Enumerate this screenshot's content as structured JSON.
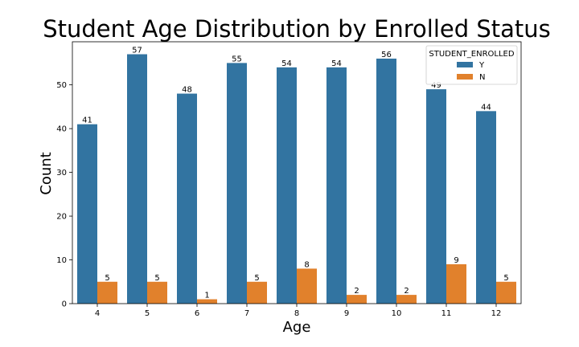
{
  "chart_data": {
    "type": "bar",
    "title": "Student Age Distribution by Enrolled Status",
    "xlabel": "Age",
    "ylabel": "Count",
    "categories": [
      "4",
      "5",
      "6",
      "7",
      "8",
      "9",
      "10",
      "11",
      "12"
    ],
    "series": [
      {
        "name": "Y",
        "color": "#3274a1",
        "values": [
          41,
          57,
          48,
          55,
          54,
          54,
          56,
          49,
          44
        ]
      },
      {
        "name": "N",
        "color": "#e1812c",
        "values": [
          5,
          5,
          1,
          5,
          8,
          2,
          2,
          9,
          5
        ]
      }
    ],
    "yticks": [
      0,
      10,
      20,
      30,
      40,
      50
    ],
    "ylim": [
      0,
      59.85
    ],
    "grid": false,
    "legend": {
      "title": "STUDENT_ENROLLED",
      "placement": "top-right"
    }
  }
}
